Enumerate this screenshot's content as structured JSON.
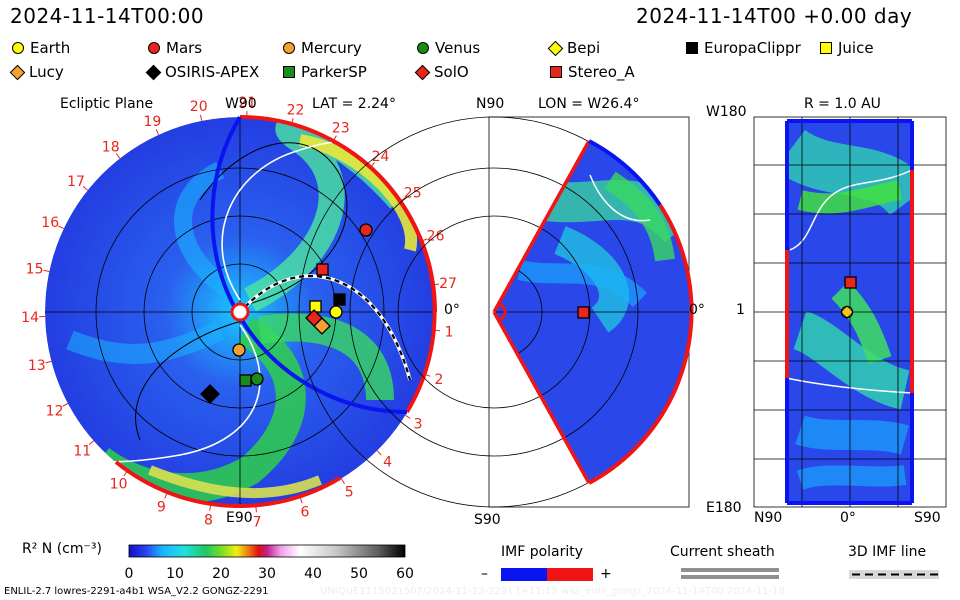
{
  "header": {
    "left_time": "2024-11-14T00:00",
    "right_time": "2024-11-14T00 +0.00 day"
  },
  "legend": [
    {
      "name": "Earth",
      "shape": "circle",
      "color": "#ffff00"
    },
    {
      "name": "Mars",
      "shape": "circle",
      "color": "#e8261c"
    },
    {
      "name": "Mercury",
      "shape": "circle",
      "color": "#f5a030"
    },
    {
      "name": "Venus",
      "shape": "circle",
      "color": "#1a8a1a"
    },
    {
      "name": "Bepi",
      "shape": "diamond",
      "color": "#ffff00"
    },
    {
      "name": "EuropaClippr",
      "shape": "square",
      "color": "#000000"
    },
    {
      "name": "Juice",
      "shape": "square",
      "color": "#ffff00"
    },
    {
      "name": "Lucy",
      "shape": "diamond",
      "color": "#f5a030"
    },
    {
      "name": "OSIRIS-APEX",
      "shape": "diamond",
      "color": "#000000"
    },
    {
      "name": "ParkerSP",
      "shape": "square",
      "color": "#1a8a1a"
    },
    {
      "name": "SolO",
      "shape": "diamond",
      "color": "#e8261c"
    },
    {
      "name": "Stereo_A",
      "shape": "square",
      "color": "#e8261c"
    }
  ],
  "panels": {
    "ecliptic": {
      "title": "Ecliptic Plane",
      "top_label": "W90",
      "bottom_label": "E90",
      "right_label": "0°",
      "lat_label": "LAT = 2.24°"
    },
    "meridional": {
      "top_label": "N90",
      "bottom_label": "S90",
      "right_label": "0°",
      "lon_label": "LON = W26.4°"
    },
    "radial": {
      "title": "R = 1.0 AU",
      "top_left": "W180",
      "bottom_left": "E180",
      "mid_left": "1",
      "bottom_ticks": [
        "N90",
        "0°",
        "S90"
      ]
    }
  },
  "chart_data": {
    "type": "heatmap",
    "colorbar": {
      "label": "R² N (cm⁻³)",
      "ticks": [
        0,
        10,
        20,
        30,
        40,
        50,
        60
      ],
      "range": [
        0,
        60
      ]
    },
    "carrington_ticks": [
      "19",
      "20",
      "21",
      "22",
      "23",
      "24",
      "25",
      "26",
      "27",
      "1",
      "2",
      "3",
      "4",
      "5",
      "6",
      "7",
      "8",
      "9",
      "10",
      "11",
      "12",
      "13",
      "14",
      "15",
      "16",
      "17",
      "18"
    ],
    "imf": {
      "label": "IMF polarity",
      "minus": "–",
      "plus": "+",
      "colors": [
        "#0a14f0",
        "#f01414"
      ]
    },
    "current_sheath": "Current sheath",
    "imf_line": "3D IMF line"
  },
  "footer": {
    "left": "ENLIL-2.7 lowres-2291-a4b1 WSA_V2.2 GONGZ-2291",
    "right": "UNIQUE1115021507/2024-11-13-2291 t+11:15 wsa_enlil_gongz_2024-11-14T00   2024-11-18"
  }
}
